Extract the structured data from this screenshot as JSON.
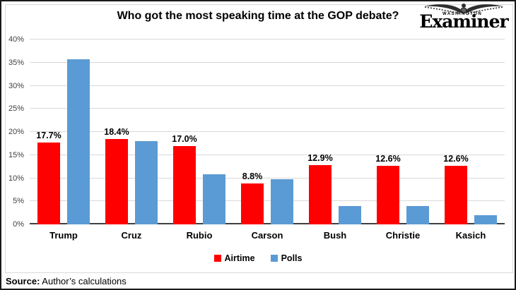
{
  "header": {
    "title": "Who got the most speaking time at the GOP debate?",
    "logo": {
      "top_text": "WASHINGTON",
      "name_text": "Examiner"
    }
  },
  "chart_data": {
    "type": "bar",
    "title": "Who got the most speaking time at the GOP debate?",
    "categories": [
      "Trump",
      "Cruz",
      "Rubio",
      "Carson",
      "Bush",
      "Christie",
      "Kasich"
    ],
    "series": [
      {
        "name": "Airtime",
        "color": "#FF0000",
        "values": [
          17.7,
          18.4,
          17.0,
          8.8,
          12.9,
          12.6,
          12.6
        ],
        "labels": [
          "17.7%",
          "18.4%",
          "17.0%",
          "8.8%",
          "12.9%",
          "12.6%",
          "12.6%"
        ]
      },
      {
        "name": "Polls",
        "color": "#5B9BD5",
        "values": [
          35.8,
          18.0,
          10.8,
          9.7,
          3.9,
          3.9,
          2.0
        ]
      }
    ],
    "xlabel": "",
    "ylabel": "",
    "ylim": [
      0,
      40
    ],
    "yticks": [
      "0%",
      "5%",
      "10%",
      "15%",
      "20%",
      "25%",
      "30%",
      "35%",
      "40%"
    ],
    "grid": true,
    "legend_position": "bottom"
  },
  "footer": {
    "source_label": "Source:",
    "source_text": " Author’s calculations"
  },
  "colors": {
    "airtime": "#FF0000",
    "polls": "#5B9BD5",
    "gridline": "#D9D9D9",
    "axis_line": "#404040",
    "border": "#1A1A1A",
    "background": "#FFFFFF"
  }
}
